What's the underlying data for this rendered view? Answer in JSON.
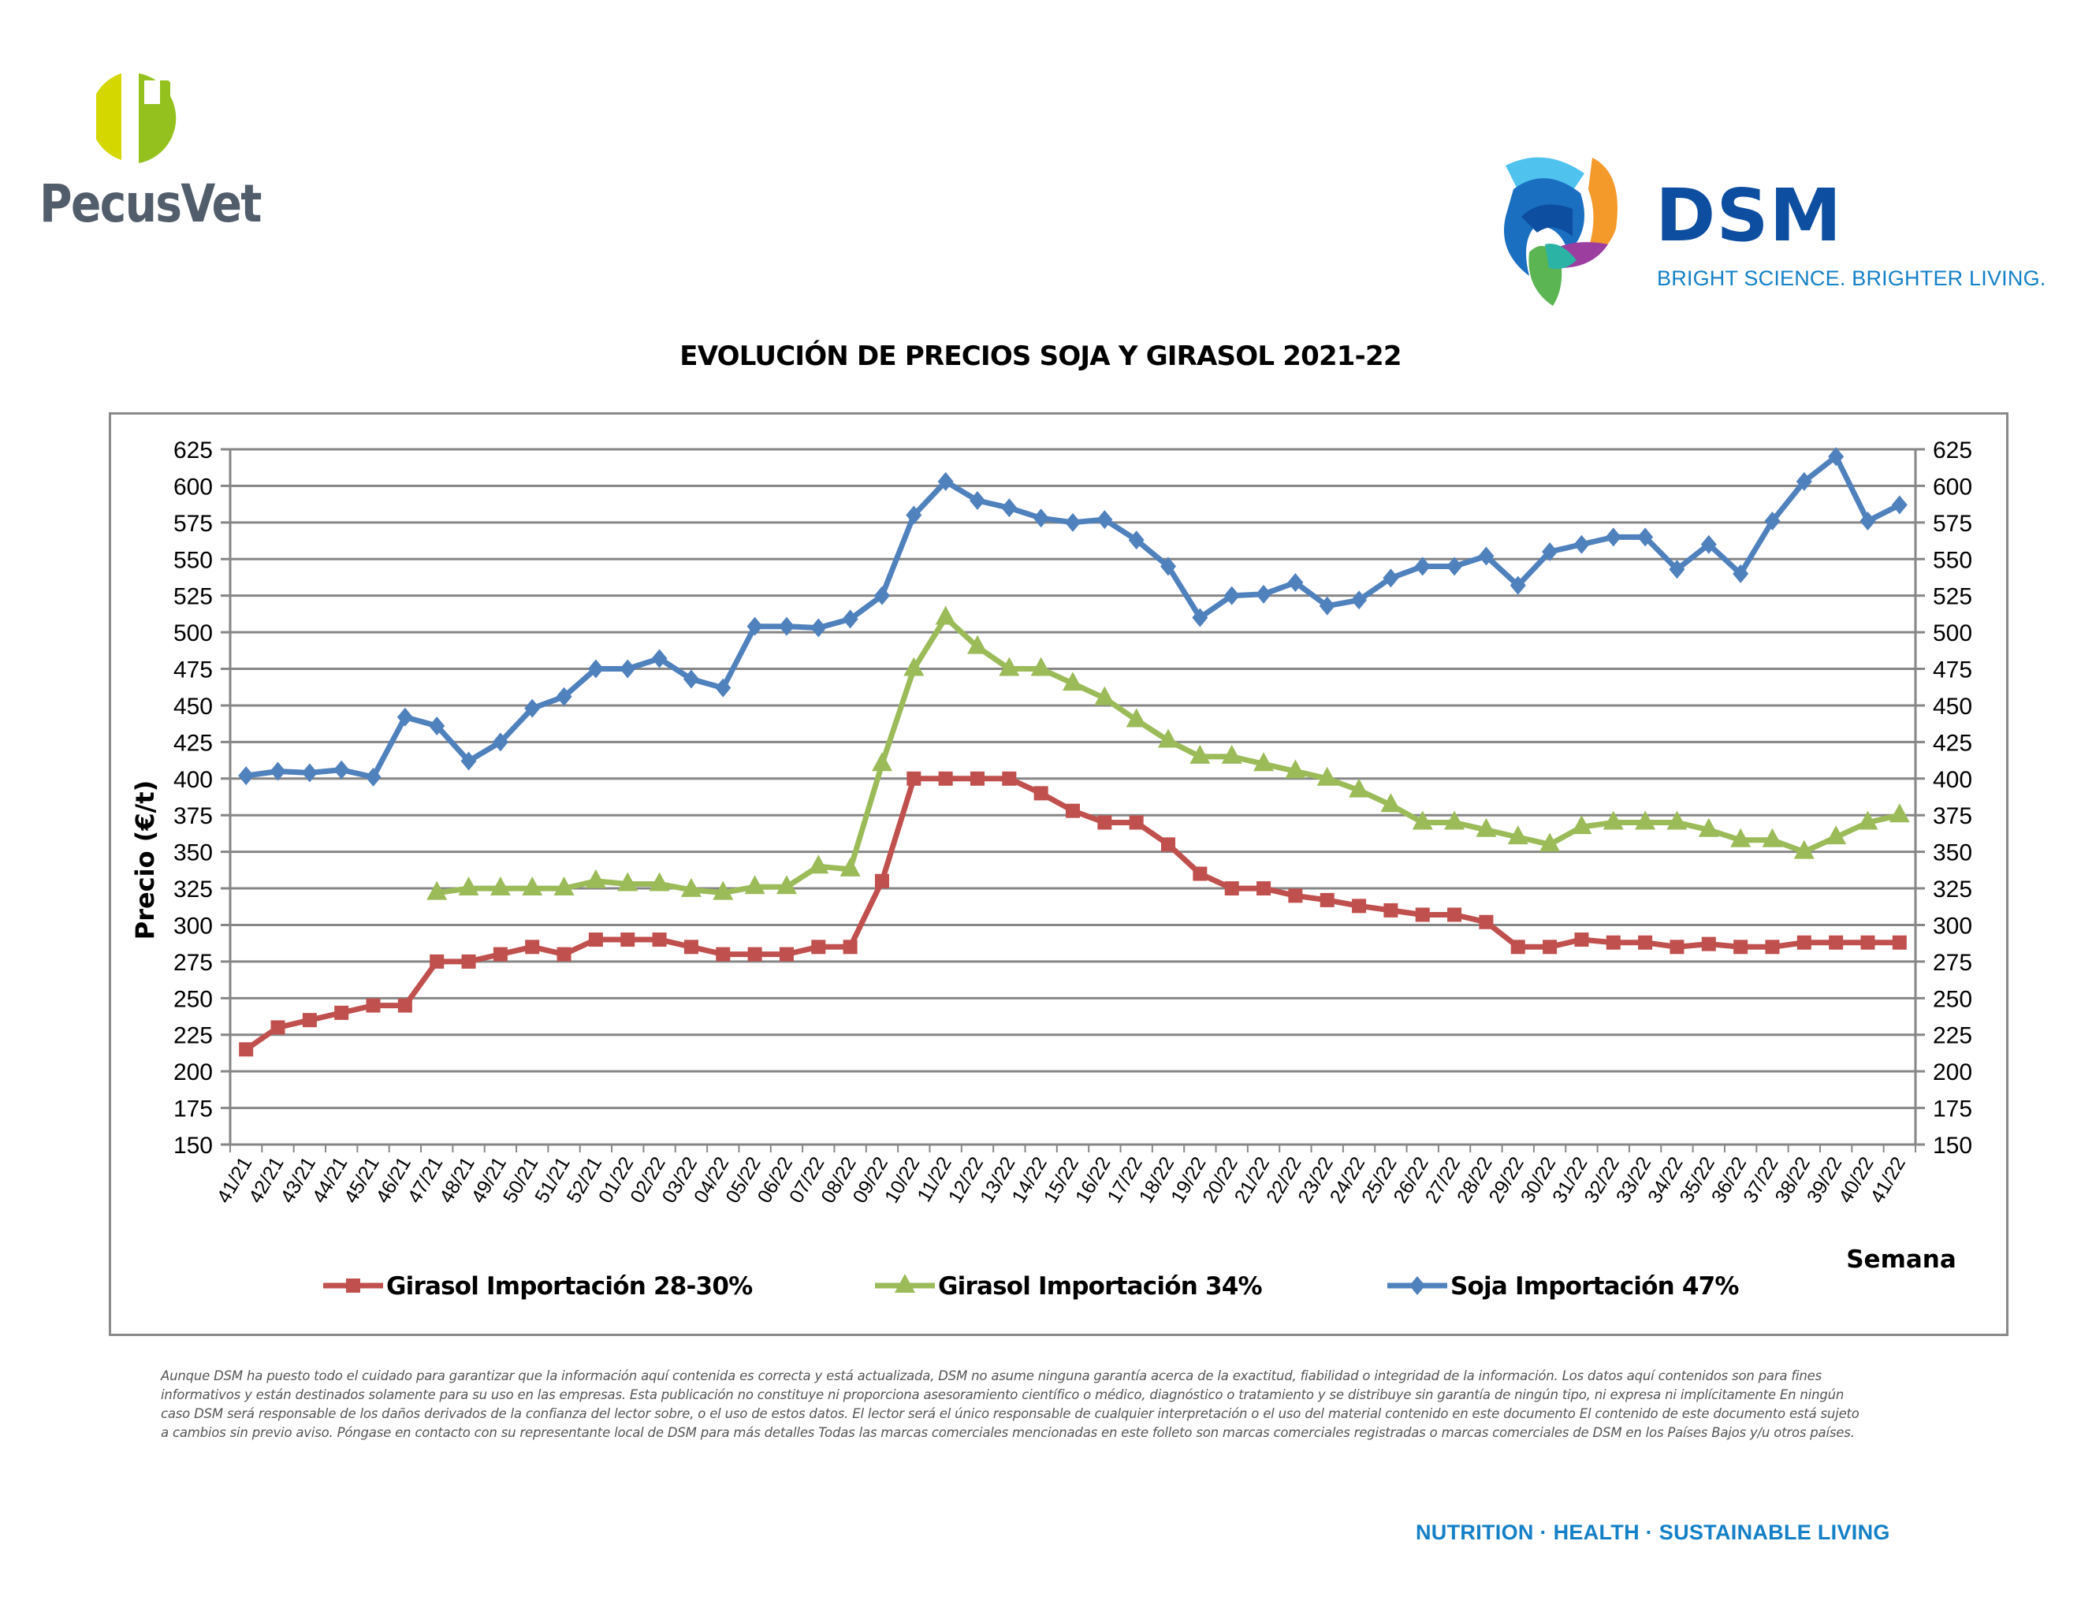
{
  "header": {
    "left_logo": {
      "name": "PecusVet",
      "colors": {
        "left_half": "#d4d800",
        "right_half": "#95c11f",
        "text": "#525d6b"
      }
    },
    "right_logo": {
      "name": "DSM",
      "tagline": "BRIGHT SCIENCE. BRIGHTER LIVING.",
      "colors": {
        "name": "#0d4ea0",
        "tagline": "#1480c7"
      }
    }
  },
  "disclaimer": "Aunque DSM ha puesto todo el cuidado para garantizar que la información aquí contenida es correcta y está actualizada, DSM no asume ninguna garantía acerca de la exactitud, fiabilidad o integridad de la información. Los datos aquí contenidos son para fines informativos y están destinados solamente para su uso en las empresas. Esta publicación no constituye ni proporciona asesoramiento científico o médico, diagnóstico o tratamiento y se distribuye sin garantía de ningún tipo, ni expresa ni implícitamente En ningún caso DSM será responsable de los daños derivados de la confianza del lector sobre, o el uso de estos datos. El lector será el único responsable de cualquier interpretación o el uso del material contenido en este documento El contenido de este documento está sujeto a cambios sin previo aviso. Póngase en contacto con su representante local de DSM para más detalles Todas las marcas comerciales mencionadas en este folleto son marcas comerciales registradas o marcas comerciales de DSM en los Países Bajos y/u otros países.",
  "footer": {
    "tagline": "NUTRITION  ·  HEALTH  ·  SUSTAINABLE LIVING"
  },
  "chart_data": {
    "type": "line",
    "title": "EVOLUCIÓN DE PRECIOS SOJA Y GIRASOL 2021-22",
    "xlabel": "Semana",
    "ylabel": "Precio (€/t)",
    "ylim": [
      150,
      625
    ],
    "ytick_step": 25,
    "secondary_y_axis": true,
    "grid": true,
    "legend_position": "bottom",
    "categories": [
      "41/21",
      "42/21",
      "43/21",
      "44/21",
      "45/21",
      "46/21",
      "47/21",
      "48/21",
      "49/21",
      "50/21",
      "51/21",
      "52/21",
      "01/22",
      "02/22",
      "03/22",
      "04/22",
      "05/22",
      "06/22",
      "07/22",
      "08/22",
      "09/22",
      "10/22",
      "11/22",
      "12/22",
      "13/22",
      "14/22",
      "15/22",
      "16/22",
      "17/22",
      "18/22",
      "19/22",
      "20/22",
      "21/22",
      "22/22",
      "23/22",
      "24/22",
      "25/22",
      "26/22",
      "27/22",
      "28/22",
      "29/22",
      "30/22",
      "31/22",
      "32/22",
      "33/22",
      "34/22",
      "35/22",
      "36/22",
      "37/22",
      "38/22",
      "39/22",
      "40/22",
      "41/22"
    ],
    "series": [
      {
        "name": "Girasol Importación 28-30%",
        "color": "#c0504d",
        "marker": "square",
        "values": [
          215,
          230,
          235,
          240,
          245,
          245,
          275,
          275,
          280,
          285,
          280,
          290,
          290,
          290,
          285,
          280,
          280,
          280,
          285,
          285,
          330,
          400,
          400,
          400,
          400,
          390,
          378,
          370,
          370,
          355,
          335,
          325,
          325,
          320,
          317,
          313,
          310,
          307,
          307,
          302,
          285,
          285,
          290,
          288,
          288,
          285,
          287,
          285,
          285,
          288,
          288,
          288,
          288
        ]
      },
      {
        "name": "Girasol Importación 34%",
        "color": "#9bbb59",
        "marker": "triangle",
        "values": [
          null,
          null,
          null,
          null,
          null,
          null,
          322,
          325,
          325,
          325,
          325,
          330,
          328,
          328,
          324,
          322,
          326,
          326,
          340,
          338,
          410,
          475,
          510,
          490,
          475,
          475,
          465,
          455,
          440,
          426,
          415,
          415,
          410,
          405,
          400,
          392,
          382,
          370,
          370,
          365,
          360,
          355,
          367,
          370,
          370,
          370,
          365,
          358,
          358,
          350,
          360,
          370,
          375
        ]
      },
      {
        "name": "Soja Importación 47%",
        "color": "#4f81bd",
        "marker": "diamond",
        "values": [
          402,
          405,
          404,
          406,
          401,
          442,
          436,
          412,
          425,
          448,
          456,
          475,
          475,
          482,
          468,
          462,
          504,
          504,
          503,
          509,
          525,
          580,
          603,
          590,
          585,
          578,
          575,
          577,
          563,
          545,
          510,
          525,
          526,
          534,
          518,
          522,
          537,
          545,
          545,
          552,
          532,
          555,
          560,
          565,
          565,
          543,
          560,
          540,
          576,
          603,
          620,
          576,
          587
        ]
      }
    ]
  }
}
